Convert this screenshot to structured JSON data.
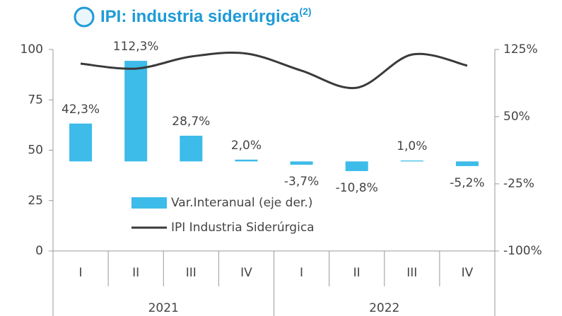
{
  "chart_data": {
    "type": "bar-line",
    "title": "IPI:  industria siderúrgica",
    "title_note": "(2)",
    "categories": [
      "I",
      "II",
      "III",
      "IV",
      "I",
      "II",
      "III",
      "IV"
    ],
    "groups": [
      {
        "label": "2021",
        "span": 4
      },
      {
        "label": "2022",
        "span": 4
      }
    ],
    "series": [
      {
        "name": "Var.Interanual (eje der.)",
        "kind": "bar",
        "axis": "y2",
        "color": "#3dbbe9",
        "values": [
          42.3,
          112.3,
          28.7,
          2.0,
          -3.7,
          -10.8,
          1.0,
          -5.2
        ],
        "value_labels": [
          "42,3%",
          "112,3%",
          "28,7%",
          "2,0%",
          "-3,7%",
          "-10,8%",
          "1,0%",
          "-5,2%"
        ]
      },
      {
        "name": "IPI Industria Siderúrgica",
        "kind": "line",
        "color": "#3a3a3a",
        "values": [
          93,
          90.5,
          96.5,
          98,
          89.5,
          81,
          97.5,
          92
        ]
      }
    ],
    "ylim": [
      0,
      100
    ],
    "yticks": [
      0,
      25,
      50,
      75,
      100
    ],
    "y2lim": [
      -100,
      125
    ],
    "y2ticks": [
      {
        "value": -100,
        "label": "-100%"
      },
      {
        "value": -25,
        "label": "-25%"
      },
      {
        "value": 50,
        "label": "50%"
      },
      {
        "value": 125,
        "label": "125%"
      }
    ],
    "grid": false
  }
}
